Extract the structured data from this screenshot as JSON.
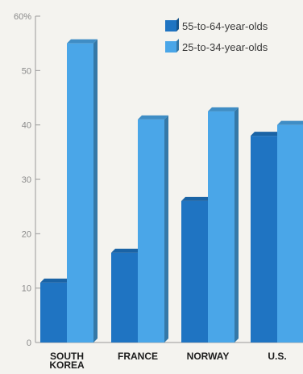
{
  "chart_data": {
    "type": "bar",
    "categories": [
      "SOUTH KOREA",
      "FRANCE",
      "NORWAY",
      "U.S."
    ],
    "series": [
      {
        "name": "55-to-64-year-olds",
        "color": "#1f74c2",
        "values": [
          11,
          16.5,
          26,
          38
        ]
      },
      {
        "name": "25-to-34-year-olds",
        "color": "#4aa6e8",
        "values": [
          55,
          41,
          42.5,
          40
        ]
      }
    ],
    "yticks": [
      "0",
      "10",
      "20",
      "30",
      "40",
      "50",
      "60%"
    ],
    "ylim": [
      0,
      60
    ],
    "grid": false,
    "legend_position": "top-right"
  }
}
